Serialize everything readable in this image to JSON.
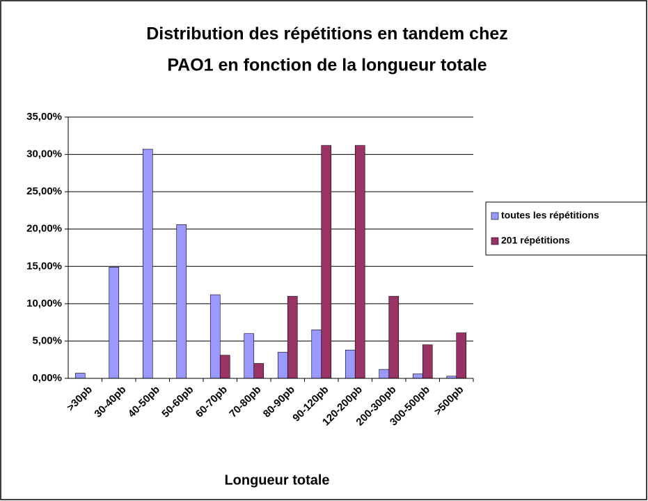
{
  "chart_data": {
    "type": "bar",
    "title": [
      "Distribution des répétitions en tandem chez",
      "PAO1 en fonction de la longueur totale"
    ],
    "x_label": "Longueur totale",
    "categories": [
      ">30pb",
      "30-40pb",
      "40-50pb",
      "50-60pb",
      "60-70pb",
      "70-80pb",
      "80-90pb",
      "90-120pb",
      "120-200pb",
      "200-300pb",
      "300-500pb",
      ">500pb"
    ],
    "series": [
      {
        "name": "toutes les répétitions",
        "color": "#9999ff",
        "values": [
          0.7,
          14.9,
          30.7,
          20.6,
          11.2,
          6.0,
          3.5,
          6.5,
          3.8,
          1.2,
          0.6,
          0.3
        ]
      },
      {
        "name": "201 répétitions",
        "color": "#993366",
        "values": [
          0,
          0,
          0,
          0,
          3.1,
          2.0,
          11.0,
          31.2,
          31.2,
          11.0,
          4.5,
          6.1
        ]
      }
    ],
    "ylim": [
      0,
      35
    ],
    "yticks": [
      {
        "value": 0,
        "label": "0,00%"
      },
      {
        "value": 5,
        "label": "5,00%"
      },
      {
        "value": 10,
        "label": "10,00%"
      },
      {
        "value": 15,
        "label": "15,00%"
      },
      {
        "value": 20,
        "label": "20,00%"
      },
      {
        "value": 25,
        "label": "25,00%"
      },
      {
        "value": 30,
        "label": "30,00%"
      },
      {
        "value": 35,
        "label": "35,00%"
      }
    ],
    "grid": true,
    "legend": "right"
  }
}
